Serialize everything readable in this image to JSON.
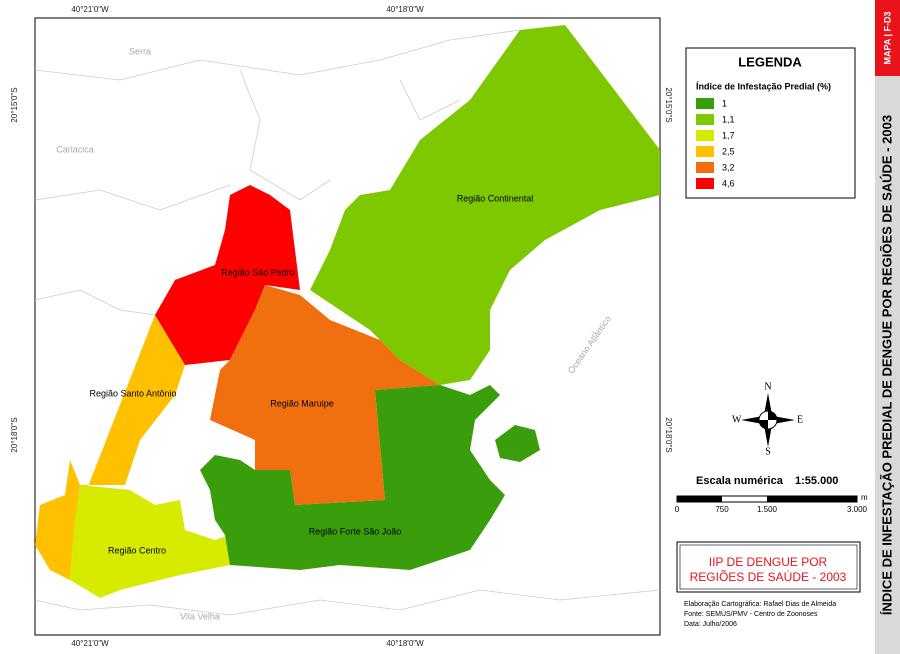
{
  "graticule": {
    "longitude": [
      "40°21'0\"W",
      "40°18'0\"W"
    ],
    "latitude": [
      "20°15'0\"S",
      "20°18'0\"S"
    ]
  },
  "places": [
    "Serra",
    "Cariacica",
    "Vila Velha",
    "Oceano Atlântico"
  ],
  "regions": [
    {
      "name": "Região Continental",
      "color": "#7dc800"
    },
    {
      "name": "Região São Pedro",
      "color": "#ff0000"
    },
    {
      "name": "Região Santo Antônio",
      "color": "#ffc000"
    },
    {
      "name": "Região Centro",
      "color": "#d6eb00"
    },
    {
      "name": "Região Maruipe",
      "color": "#f07010"
    },
    {
      "name": "Região Forte São João",
      "color": "#3a9e0c"
    }
  ],
  "legend": {
    "title": "LEGENDA",
    "subtitle": "Índice de Infestação Predial (%)",
    "items": [
      {
        "label": "1",
        "color": "#3a9e0c"
      },
      {
        "label": "1,1",
        "color": "#7dc800"
      },
      {
        "label": "1,7",
        "color": "#d6eb00"
      },
      {
        "label": "2,5",
        "color": "#ffc000"
      },
      {
        "label": "3,2",
        "color": "#f07010"
      },
      {
        "label": "4,6",
        "color": "#ff0000"
      }
    ]
  },
  "compass": {
    "n": "N",
    "s": "S",
    "e": "E",
    "w": "W"
  },
  "scale": {
    "title": "Escala numérica",
    "ratio": "1:55.000",
    "ticks": [
      "0",
      "750",
      "1.500",
      "3.000"
    ],
    "unit": "m"
  },
  "title_box": {
    "line1": "IIP DE DENGUE POR",
    "line2": "REGIÕES DE SAÚDE - 2003"
  },
  "credits": [
    "Elaboração Cartográfica: Rafael Dias de Almeida",
    "Fonte: SEMUS/PMV - Centro de Zoonoses",
    "Data: Julho/2006"
  ],
  "side": {
    "code": "MAPA | F-D3",
    "title": "ÍNDICE DE INFESTAÇÃO PREDIAL DE DENGUE POR REGIÕES DE SAÚDE - 2003"
  }
}
